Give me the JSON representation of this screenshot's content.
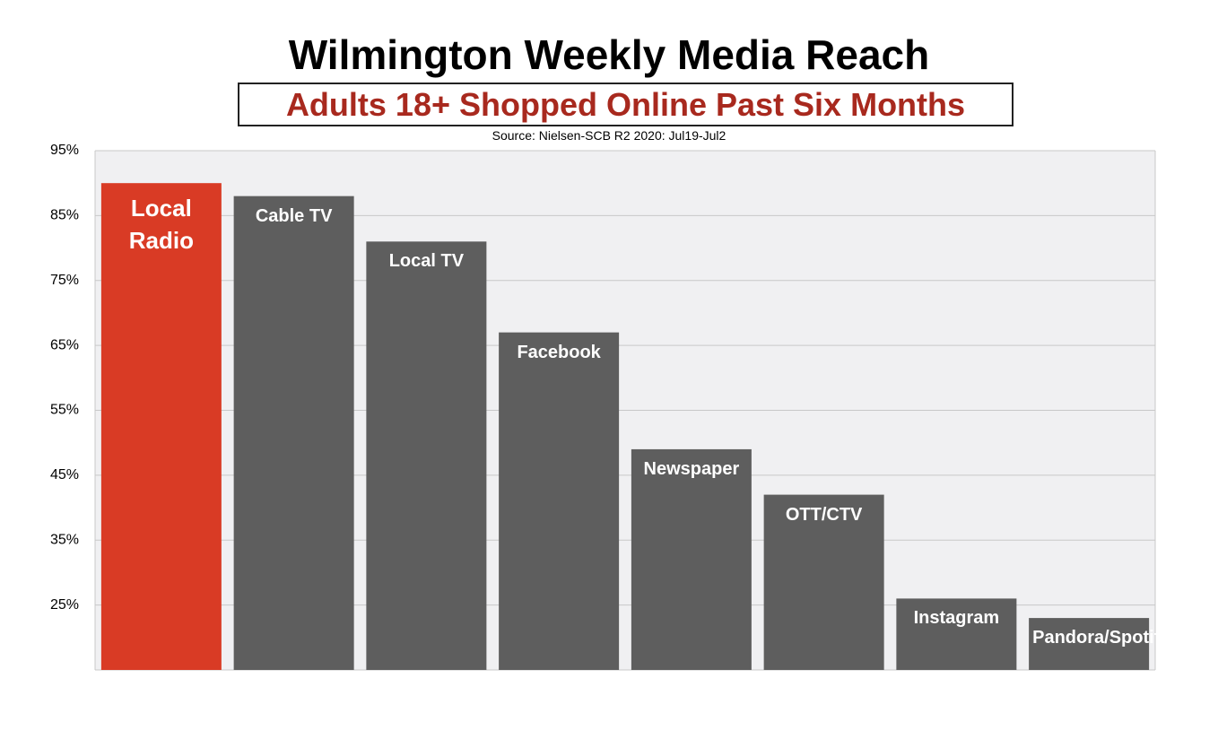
{
  "chart_data": {
    "type": "bar",
    "title": "Wilmington Weekly Media Reach",
    "subtitle": "Adults 18+ Shopped Online Past Six Months",
    "source": "Source: Nielsen-SCB R2 2020: Jul19-Jul2",
    "categories": [
      "Local Radio",
      "Cable TV",
      "Local TV",
      "Facebook",
      "Newspaper",
      "OTT/CTV",
      "Instagram",
      "Pandora/Spotify"
    ],
    "values": [
      90,
      88,
      81,
      67,
      49,
      42,
      26,
      23
    ],
    "colors": [
      "#d93b25",
      "#5e5e5e",
      "#5e5e5e",
      "#5e5e5e",
      "#5e5e5e",
      "#5e5e5e",
      "#5e5e5e",
      "#5e5e5e"
    ],
    "ylim": [
      15,
      95
    ],
    "yticks": [
      {
        "value": 25,
        "label": "25%"
      },
      {
        "value": 35,
        "label": "35%"
      },
      {
        "value": 45,
        "label": "45%"
      },
      {
        "value": 55,
        "label": "55%"
      },
      {
        "value": 65,
        "label": "65%"
      },
      {
        "value": 75,
        "label": "75%"
      },
      {
        "value": 85,
        "label": "85%"
      },
      {
        "value": 95,
        "label": "95%"
      }
    ],
    "grid": true
  }
}
